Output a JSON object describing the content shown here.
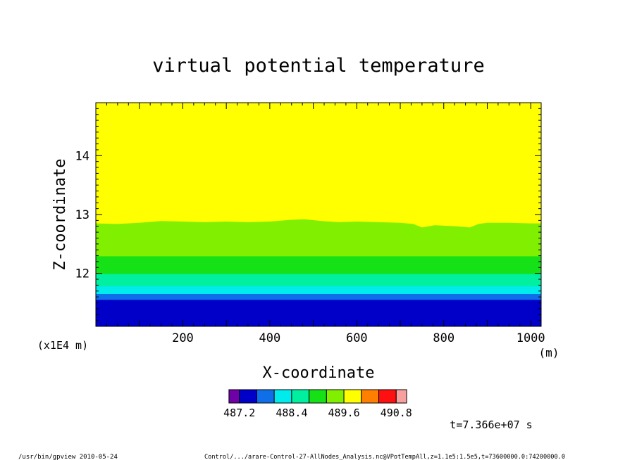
{
  "chart_data": {
    "type": "heatmap",
    "title": "virtual potential temperature",
    "xlabel": "X-coordinate",
    "ylabel": "Z-coordinate",
    "x_unit": "(m)",
    "y_scale_note": "(x1E4 m)",
    "xlim": [
      0,
      1024
    ],
    "ylim": [
      11.1,
      14.9
    ],
    "x_ticks": [
      200,
      400,
      600,
      800,
      1000
    ],
    "y_ticks": [
      12,
      13,
      14
    ],
    "band_boundaries": [
      {
        "z": 11.55,
        "color": "#0000c8"
      },
      {
        "z": 11.65,
        "color": "#0f6fe8"
      },
      {
        "z": 11.78,
        "color": "#00ebeb"
      },
      {
        "z": 11.99,
        "color": "#00f0a0"
      },
      {
        "z": 12.29,
        "color": "#16e016"
      },
      {
        "z": 12.86,
        "color": "#80f000"
      },
      {
        "z": 14.9,
        "color": "#ffff00"
      }
    ],
    "upper_interface_x": [
      0,
      50,
      100,
      150,
      200,
      250,
      300,
      350,
      400,
      450,
      480,
      520,
      560,
      600,
      650,
      700,
      730,
      750,
      780,
      800,
      830,
      860,
      880,
      900,
      950,
      1000,
      1024
    ],
    "upper_interface_z": [
      12.85,
      12.84,
      12.86,
      12.89,
      12.88,
      12.87,
      12.88,
      12.87,
      12.88,
      12.91,
      12.92,
      12.89,
      12.87,
      12.88,
      12.87,
      12.86,
      12.84,
      12.78,
      12.82,
      12.81,
      12.8,
      12.78,
      12.84,
      12.86,
      12.86,
      12.85,
      12.85
    ],
    "colorbar": {
      "colors": [
        "#7000a8",
        "#0000c8",
        "#0f6fe8",
        "#00ebeb",
        "#00f0a0",
        "#16e016",
        "#80f000",
        "#ffff00",
        "#ff8000",
        "#ff1010",
        "#f8a0a0"
      ],
      "tick_labels": [
        "487.2",
        "488.4",
        "489.6",
        "490.8"
      ]
    },
    "time_label": "t=7.366e+07 s"
  },
  "footer": {
    "left": "/usr/bin/gpview  2010-05-24",
    "right": "Control/.../arare-Control-27-AllNodes_Analysis.nc@VPotTempAll,z=1.1e5:1.5e5,t=73600000.0:74200000.0"
  }
}
